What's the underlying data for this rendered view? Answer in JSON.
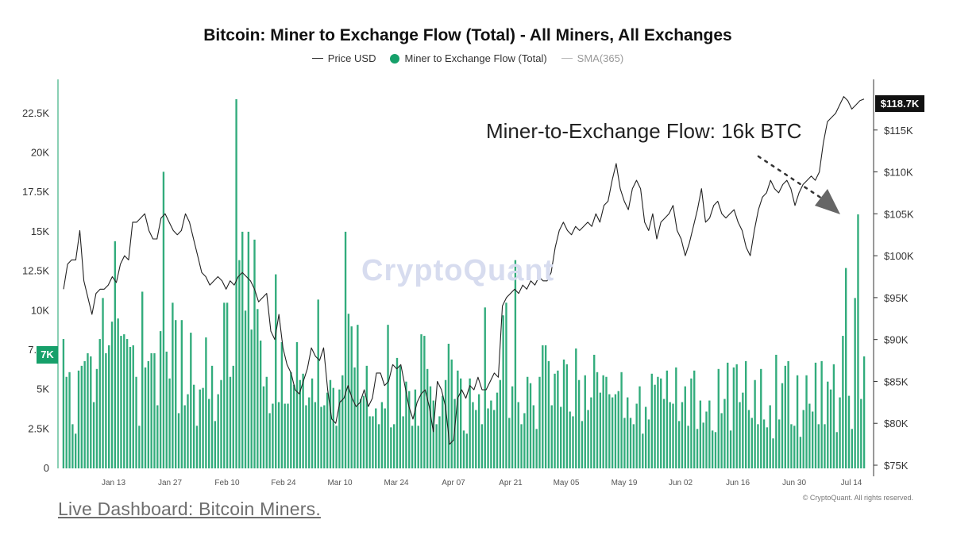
{
  "chart_data": {
    "type": "bar",
    "title": "Bitcoin: Miner to Exchange Flow (Total) - All Miners, All Exchanges",
    "legend": {
      "placement": "top",
      "entries": [
        "Price USD",
        "Miner to Exchange Flow (Total)",
        "SMA(365)"
      ]
    },
    "x_tick_labels": [
      "Jan 13",
      "Jan 27",
      "Feb 10",
      "Feb 24",
      "Mar 10",
      "Mar 24",
      "Apr 07",
      "Apr 21",
      "May 05",
      "May 19",
      "Jun 02",
      "Jun 16",
      "Jun 30",
      "Jul 14"
    ],
    "left_axis": {
      "ylim": [
        0,
        23500
      ],
      "ticks": [
        0,
        2500,
        5000,
        7500,
        10000,
        12500,
        15000,
        17500,
        20000,
        22500
      ],
      "tick_labels": [
        "0",
        "2.5K",
        "5K",
        "7.5K",
        "10K",
        "12.5K",
        "15K",
        "17.5K",
        "20K",
        "22.5K"
      ]
    },
    "right_axis": {
      "ylim": [
        75000,
        120000
      ],
      "ticks": [
        75000,
        80000,
        85000,
        90000,
        95000,
        100000,
        105000,
        110000,
        115000
      ],
      "tick_labels": [
        "$75K",
        "$80K",
        "$85K",
        "$90K",
        "$95K",
        "$100K",
        "$105K",
        "$110K",
        "$115K"
      ]
    },
    "series": [
      {
        "name": "Miner to Exchange Flow (Total)",
        "type": "bar",
        "axis": "left",
        "color": "#16a06a",
        "values": [
          8200,
          5800,
          6100,
          2800,
          2200,
          6200,
          6500,
          6800,
          7300,
          7100,
          4200,
          6300,
          8200,
          10800,
          7300,
          7800,
          9300,
          14400,
          9500,
          8400,
          8500,
          8200,
          7700,
          7800,
          5800,
          2700,
          11200,
          6400,
          6800,
          7300,
          7300,
          4000,
          8700,
          18800,
          7400,
          5700,
          10500,
          9400,
          3500,
          9400,
          4000,
          4700,
          8600,
          5300,
          2700,
          5000,
          5100,
          8300,
          4400,
          6500,
          3000,
          4700,
          5600,
          10500,
          10500,
          5800,
          6500,
          23400,
          13200,
          15000,
          10000,
          15000,
          8800,
          14500,
          10100,
          8100,
          5200,
          5800,
          3500,
          4100,
          12300,
          4200,
          8000,
          4100,
          4100,
          6100,
          5300,
          8000,
          5600,
          6000,
          4000,
          4500,
          5700,
          4200,
          10700,
          3900,
          4000,
          4800,
          5600,
          5100,
          2700,
          5000,
          5900,
          15000,
          9800,
          9000,
          6400,
          9100,
          4400,
          4600,
          6500,
          3300,
          3300,
          3800,
          2800,
          4200,
          3800,
          9100,
          2600,
          2800,
          7000,
          6500,
          3300,
          5500,
          4900,
          2700,
          5000,
          2700,
          8500,
          8400,
          6300,
          5200,
          4300,
          2800,
          3300,
          4600,
          5600,
          7900,
          6900,
          4400,
          6200,
          5700,
          2400,
          2200,
          5700,
          4200,
          3700,
          4700,
          2800,
          10200,
          3800,
          4300,
          3700,
          4800,
          5600,
          9700,
          10500,
          3200,
          5200,
          13200,
          4200,
          2800,
          3500,
          5800,
          5400,
          4000,
          2500,
          5800,
          7800,
          7800,
          6800,
          4000,
          6000,
          6200,
          3900,
          6900,
          6600,
          3600,
          3300,
          7600,
          5600,
          3000,
          5900,
          3700,
          4500,
          7200,
          6100,
          4800,
          5900,
          5800,
          4700,
          4500,
          4700,
          4900,
          6100,
          3200,
          4500,
          3200,
          2800,
          4100,
          5200,
          2200,
          3900,
          3100,
          6000,
          5300,
          5800,
          5700,
          4400,
          6200,
          4200,
          4100,
          6400,
          3000,
          4200,
          5200,
          2700,
          5700,
          6200,
          2500,
          4300,
          2900,
          3600,
          4300,
          2400,
          2300,
          6300,
          3500,
          4400,
          6700,
          2400,
          6400,
          6600,
          4200,
          4800,
          6800,
          3700,
          3200,
          5600,
          2800,
          6300,
          3100,
          2600,
          4000,
          1900,
          7200,
          3100,
          5400,
          6500,
          6800,
          2800,
          2700,
          5900,
          2000,
          3700,
          5900,
          4100,
          3600,
          6700,
          2800,
          6800,
          2800,
          5500,
          5000,
          6600,
          2300,
          4500,
          8400,
          12700,
          4600,
          2500,
          10800,
          16100,
          4400,
          7100
        ]
      },
      {
        "name": "Price USD",
        "type": "line",
        "axis": "right",
        "color": "#222222",
        "values": [
          96000,
          99000,
          99500,
          99500,
          103000,
          97000,
          95000,
          93000,
          95500,
          96000,
          96000,
          96500,
          97500,
          96800,
          99000,
          100000,
          99500,
          104000,
          104000,
          104500,
          105000,
          103000,
          102000,
          102000,
          104500,
          105000,
          104000,
          103000,
          102500,
          103000,
          105000,
          104000,
          102000,
          100000,
          98000,
          97500,
          96500,
          97000,
          97500,
          97000,
          96000,
          97000,
          96500,
          97500,
          98000,
          97500,
          97000,
          96000,
          94500,
          95000,
          95500,
          91000,
          90000,
          93000,
          89000,
          87000,
          86000,
          84000,
          83500,
          85000,
          86500,
          89000,
          88000,
          87500,
          89000,
          84000,
          80500,
          80000,
          82500,
          83000,
          84500,
          83000,
          82000,
          82500,
          84000,
          82000,
          83000,
          86000,
          86000,
          84500,
          85000,
          87000,
          86500,
          87000,
          84500,
          82000,
          80500,
          82500,
          83500,
          84000,
          82000,
          79000,
          85000,
          84000,
          82000,
          77500,
          78000,
          83000,
          84000,
          83000,
          84500,
          84000,
          85500,
          84000,
          84000,
          85000,
          86000,
          85500,
          94000,
          95000,
          95500,
          96000,
          95500,
          96500,
          96000,
          97000,
          96500,
          97500,
          97000,
          97000,
          98000,
          101000,
          103000,
          104000,
          103000,
          102500,
          103500,
          103000,
          103500,
          104000,
          103500,
          105000,
          104000,
          106000,
          106500,
          109000,
          111000,
          108000,
          106500,
          105500,
          108000,
          109000,
          108000,
          104000,
          103000,
          105000,
          102000,
          104000,
          104500,
          105000,
          106000,
          103000,
          102000,
          100000,
          101500,
          103500,
          105500,
          108000,
          104000,
          104500,
          106000,
          106500,
          105000,
          104500,
          105000,
          105500,
          104000,
          103000,
          101000,
          100000,
          103000,
          105500,
          107000,
          107500,
          109000,
          108000,
          107500,
          108500,
          109000,
          108000,
          106000,
          107500,
          108500,
          109000,
          109500,
          109000,
          110000,
          113500,
          116000,
          116500,
          117000,
          118000,
          119000,
          118500,
          117500,
          118000,
          118500,
          118700
        ]
      }
    ],
    "annotations": [
      {
        "text": "Miner-to-Exchange Flow: 16k BTC"
      },
      {
        "text": "$118.7K"
      },
      {
        "text": "7K"
      }
    ],
    "grid": false
  },
  "watermark": "CryptoQuant",
  "footer": {
    "link": "Live Dashboard: Bitcoin Miners.",
    "copyright": "© CryptoQuant. All rights reserved."
  },
  "colors": {
    "flow": "#16a06a",
    "price": "#222222",
    "sma": "#bbbbbb",
    "arrow": "#666666"
  }
}
